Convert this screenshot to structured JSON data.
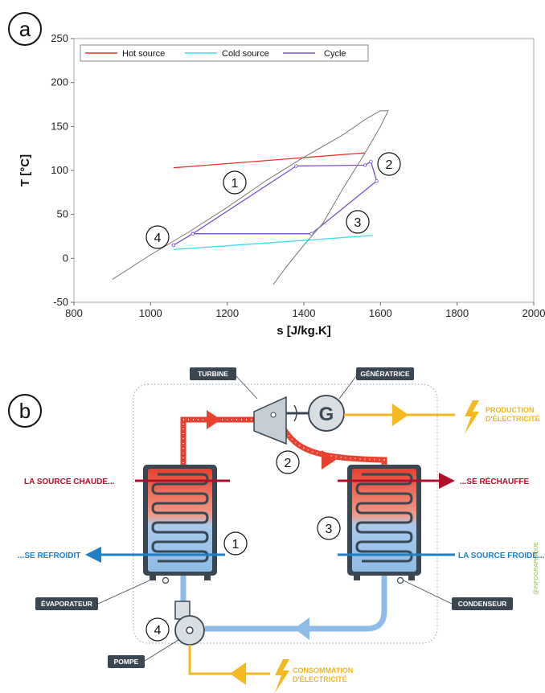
{
  "panel_a": {
    "label": "a",
    "chart_data": {
      "type": "line",
      "xlabel": "s [J/kg.K]",
      "ylabel": "T [°C]",
      "xlim": [
        800,
        2000
      ],
      "ylim": [
        -50,
        250
      ],
      "x_ticks": [
        "800",
        "1000",
        "1200",
        "1400",
        "1600",
        "1800",
        "2000"
      ],
      "y_ticks": [
        "-50",
        "0",
        "50",
        "100",
        "150",
        "200",
        "250"
      ],
      "legend_position": "top-left",
      "series": [
        {
          "name": "Hot source",
          "color": "#e8322b",
          "x": [
            1060,
            1560
          ],
          "y": [
            103,
            120
          ]
        },
        {
          "name": "Cold source",
          "color": "#35e0e8",
          "x": [
            1060,
            1580
          ],
          "y": [
            10,
            26
          ]
        },
        {
          "name": "Cycle",
          "color": "#7a4fd0",
          "x": [
            1060,
            1110,
            1380,
            1560,
            1575,
            1590,
            1420,
            1110,
            1060
          ],
          "y": [
            15,
            28,
            105,
            106,
            110,
            88,
            28,
            28,
            15
          ]
        },
        {
          "name": "",
          "color": "#777777",
          "x": [
            900,
            1000,
            1100,
            1200,
            1300,
            1400,
            1500,
            1560,
            1600,
            1620,
            1600,
            1560,
            1500,
            1450,
            1400,
            1350,
            1320
          ],
          "y": [
            -24,
            4,
            30,
            58,
            88,
            115,
            140,
            158,
            168,
            168,
            150,
            120,
            78,
            40,
            15,
            -12,
            -30
          ]
        }
      ],
      "point_labels": [
        "1",
        "2",
        "3",
        "4"
      ]
    }
  },
  "panel_b": {
    "label": "b",
    "labels": {
      "turbine": "TURBINE",
      "generatrice": "GÉNÉRATRICE",
      "generator_letter": "G",
      "production_1": "PRODUCTION",
      "production_2": "D'ÉLECTRICITÉ",
      "source_chaude": "LA SOURCE CHAUDE...",
      "se_rechauffe": "...SE RÉCHAUFFE",
      "se_refroidit": "...SE REFROIDIT",
      "source_froide": "LA SOURCE FROIDE...",
      "evaporateur": "ÉVAPORATEUR",
      "condenseur": "CONDENSEUR",
      "pompe": "POMPE",
      "consommation_1": "CONSOMMATION",
      "consommation_2": "D'ÉLECTRICITÉ",
      "credit": "@INFOGRAPHIQUE"
    },
    "numbers": [
      "1",
      "2",
      "3",
      "4"
    ],
    "colors": {
      "hot": "#e8412f",
      "cold": "#5aa5dc",
      "dark": "#3a4652",
      "yellow": "#f5b820",
      "label_red": "#b0102a"
    }
  }
}
